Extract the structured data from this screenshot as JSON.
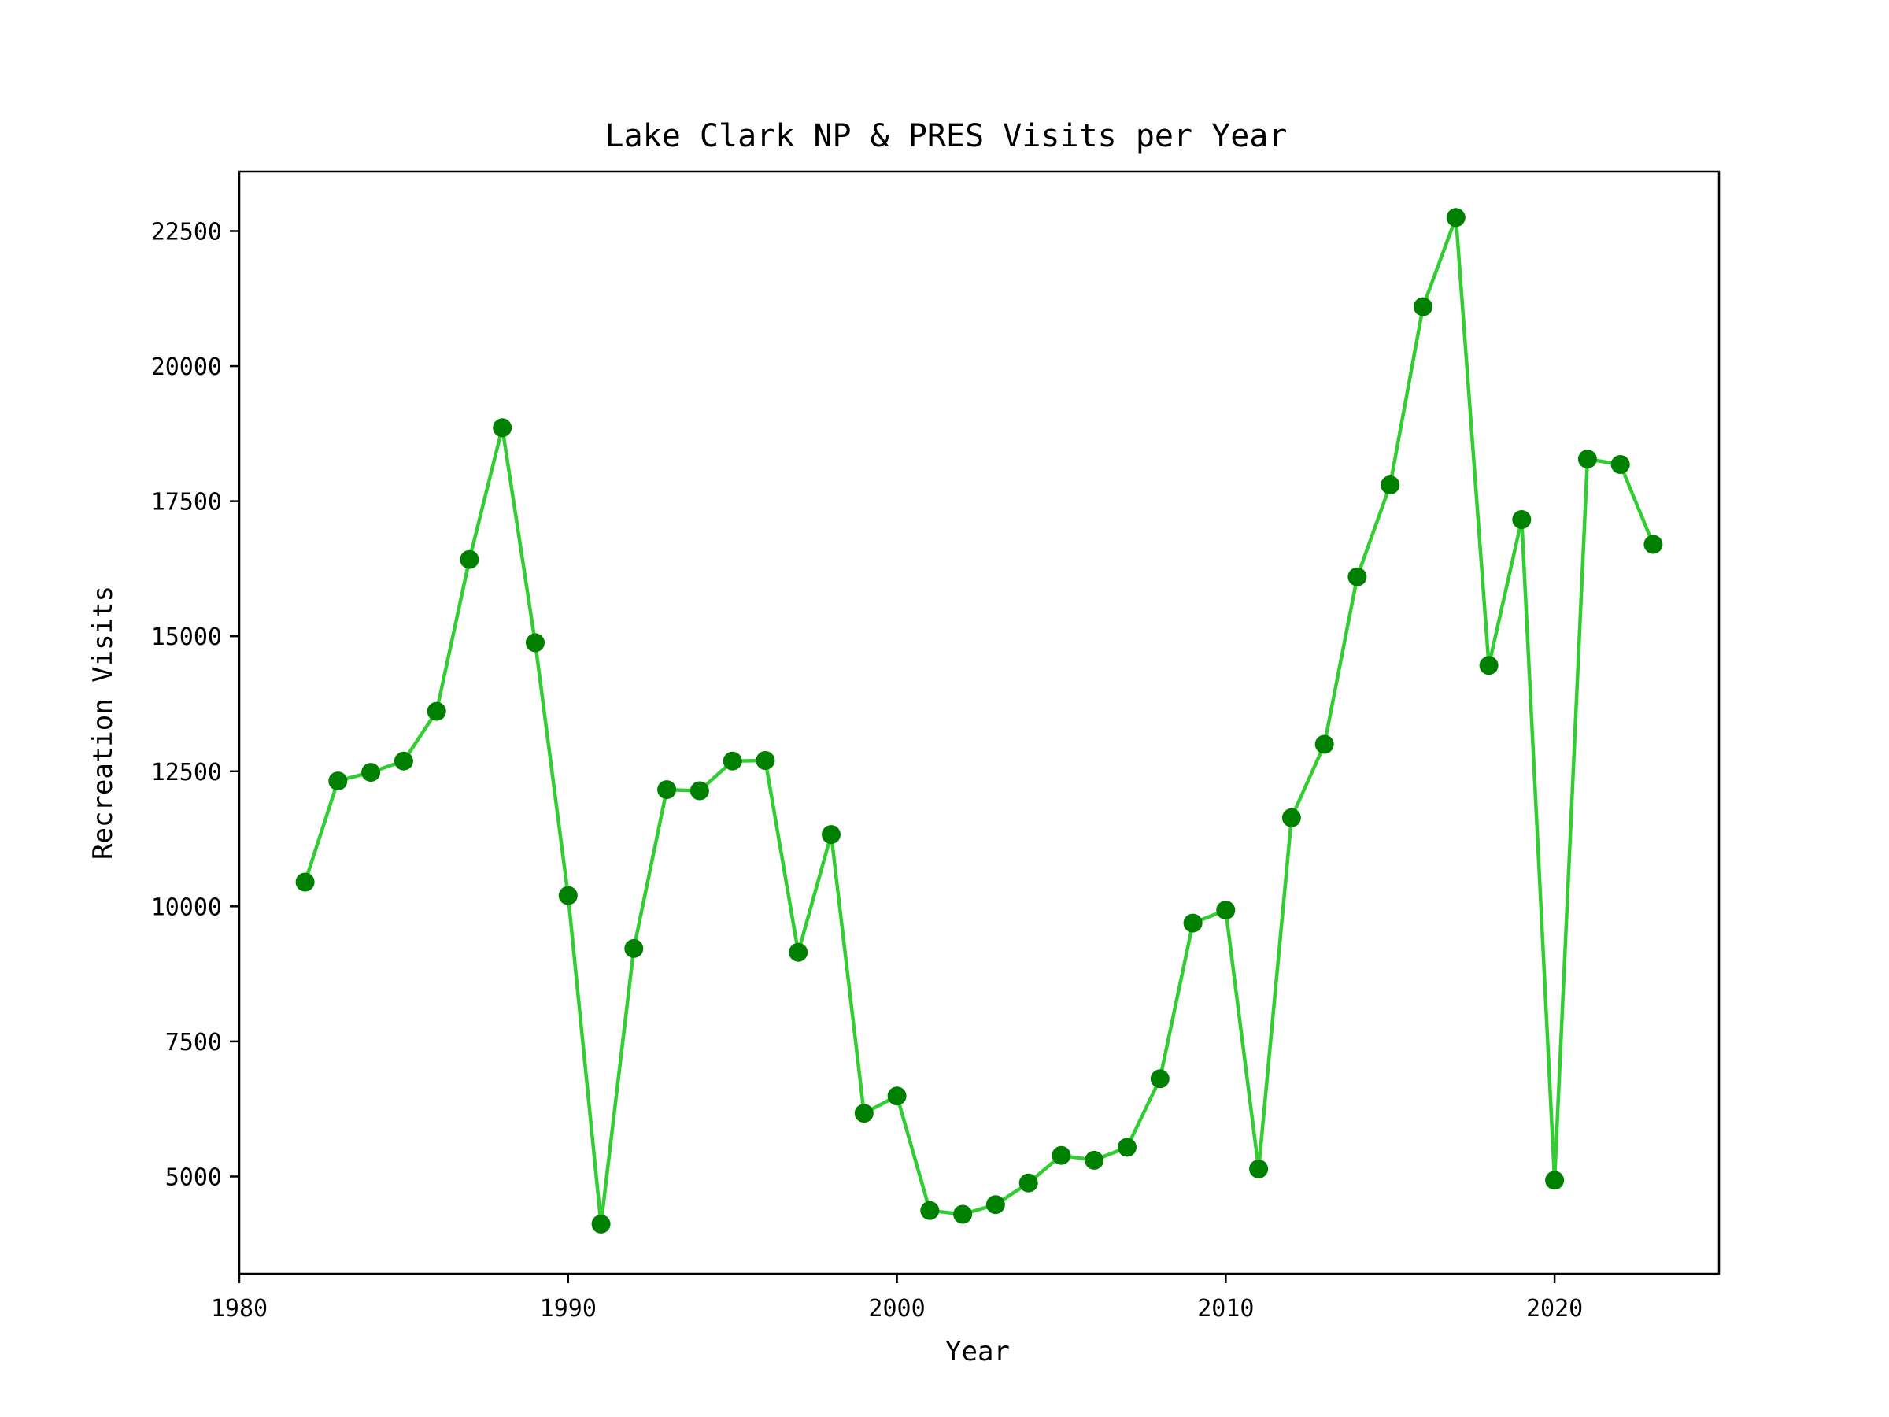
{
  "chart_data": {
    "type": "line",
    "title": "Lake Clark NP & PRES Visits per Year",
    "xlabel": "Year",
    "ylabel": "Recreation Visits",
    "xlim": [
      1980,
      2025
    ],
    "ylim": [
      3200,
      23600
    ],
    "xticks": [
      1980,
      1990,
      2000,
      2010,
      2020
    ],
    "yticks": [
      5000,
      7500,
      10000,
      12500,
      15000,
      17500,
      20000,
      22500
    ],
    "grid": false,
    "line_color": "#32cd32",
    "marker_color": "#008000",
    "series": [
      {
        "x": [
          1982,
          1983,
          1984,
          1985,
          1986,
          1987,
          1988,
          1989,
          1990,
          1991,
          1992,
          1993,
          1994,
          1995,
          1996,
          1997,
          1998,
          1999,
          2000,
          2001,
          2002,
          2003,
          2004,
          2005,
          2006,
          2007,
          2008,
          2009,
          2010,
          2011,
          2012,
          2013,
          2014,
          2015,
          2016,
          2017,
          2018,
          2019,
          2020,
          2021,
          2022,
          2023
        ],
        "y": [
          10450,
          12320,
          12480,
          12690,
          13610,
          16420,
          18860,
          14880,
          10200,
          4120,
          9220,
          12160,
          12140,
          12690,
          12700,
          9150,
          11330,
          6170,
          6490,
          4370,
          4300,
          4480,
          4880,
          5390,
          5300,
          5540,
          6810,
          9690,
          9930,
          5140,
          11640,
          13000,
          16100,
          17800,
          21100,
          22750,
          14460,
          17160,
          4930,
          18280,
          18180,
          16700
        ]
      }
    ]
  }
}
